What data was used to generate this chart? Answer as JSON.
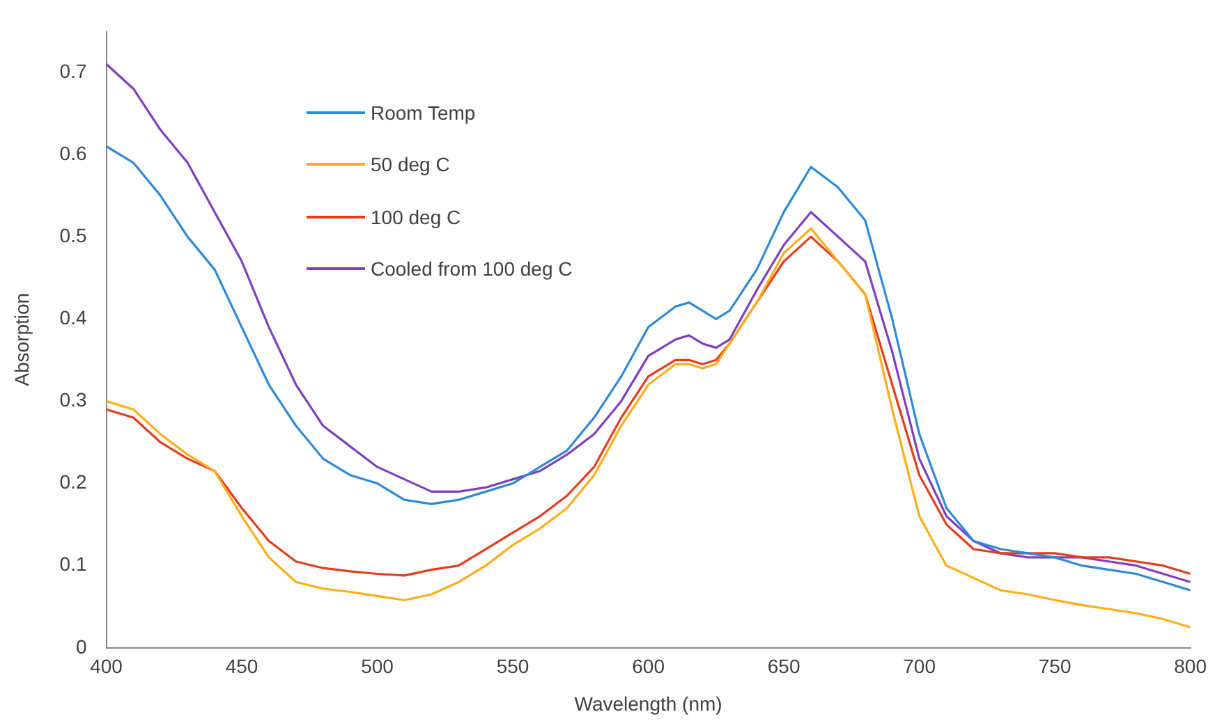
{
  "chart_data": {
    "type": "line",
    "xlabel": "Wavelength (nm)",
    "ylabel": "Absorption",
    "x": [
      400,
      410,
      420,
      430,
      440,
      450,
      460,
      470,
      480,
      490,
      500,
      510,
      520,
      530,
      540,
      550,
      560,
      570,
      580,
      590,
      600,
      610,
      615,
      620,
      625,
      630,
      640,
      650,
      660,
      670,
      680,
      690,
      700,
      710,
      720,
      730,
      740,
      750,
      760,
      770,
      780,
      790,
      800
    ],
    "series": [
      {
        "name": "Room Temp",
        "color": "#2e8ad8",
        "values": [
          0.61,
          0.59,
          0.55,
          0.5,
          0.46,
          0.39,
          0.32,
          0.27,
          0.23,
          0.21,
          0.2,
          0.18,
          0.175,
          0.18,
          0.19,
          0.2,
          0.22,
          0.24,
          0.28,
          0.33,
          0.39,
          0.415,
          0.42,
          0.41,
          0.4,
          0.41,
          0.46,
          0.53,
          0.585,
          0.56,
          0.52,
          0.4,
          0.26,
          0.17,
          0.13,
          0.12,
          0.115,
          0.11,
          0.1,
          0.095,
          0.09,
          0.08,
          0.07
        ]
      },
      {
        "name": "50 deg C",
        "color": "#ffae1a",
        "values": [
          0.3,
          0.29,
          0.26,
          0.235,
          0.215,
          0.16,
          0.11,
          0.08,
          0.072,
          0.068,
          0.063,
          0.058,
          0.065,
          0.08,
          0.1,
          0.125,
          0.145,
          0.17,
          0.21,
          0.27,
          0.32,
          0.345,
          0.345,
          0.34,
          0.345,
          0.37,
          0.42,
          0.48,
          0.51,
          0.47,
          0.43,
          0.29,
          0.16,
          0.1,
          0.085,
          0.07,
          0.065,
          0.058,
          0.052,
          0.047,
          0.042,
          0.035,
          0.025
        ]
      },
      {
        "name": "100 deg C",
        "color": "#e63c1e",
        "values": [
          0.29,
          0.28,
          0.25,
          0.23,
          0.215,
          0.17,
          0.13,
          0.105,
          0.097,
          0.093,
          0.09,
          0.088,
          0.095,
          0.1,
          0.12,
          0.14,
          0.16,
          0.185,
          0.22,
          0.28,
          0.33,
          0.35,
          0.35,
          0.345,
          0.35,
          0.37,
          0.42,
          0.47,
          0.5,
          0.47,
          0.43,
          0.32,
          0.21,
          0.15,
          0.12,
          0.115,
          0.115,
          0.115,
          0.11,
          0.11,
          0.105,
          0.1,
          0.09
        ]
      },
      {
        "name": "Cooled from 100 deg C",
        "color": "#7f3fbf",
        "values": [
          0.71,
          0.68,
          0.63,
          0.59,
          0.53,
          0.47,
          0.39,
          0.32,
          0.27,
          0.245,
          0.22,
          0.205,
          0.19,
          0.19,
          0.195,
          0.205,
          0.215,
          0.235,
          0.26,
          0.3,
          0.355,
          0.375,
          0.38,
          0.37,
          0.365,
          0.375,
          0.435,
          0.49,
          0.53,
          0.5,
          0.47,
          0.36,
          0.23,
          0.16,
          0.13,
          0.115,
          0.11,
          0.11,
          0.11,
          0.105,
          0.1,
          0.09,
          0.08
        ]
      }
    ],
    "xlim": [
      400,
      800
    ],
    "xticks": [
      400,
      450,
      500,
      550,
      600,
      650,
      700,
      750,
      800
    ],
    "ylim": [
      0,
      0.75
    ],
    "yticks": [
      0,
      0.1,
      0.2,
      0.3,
      0.4,
      0.5,
      0.6,
      0.7
    ],
    "grid": false,
    "legend": "top left",
    "marker": "none",
    "line_style": "solid"
  }
}
